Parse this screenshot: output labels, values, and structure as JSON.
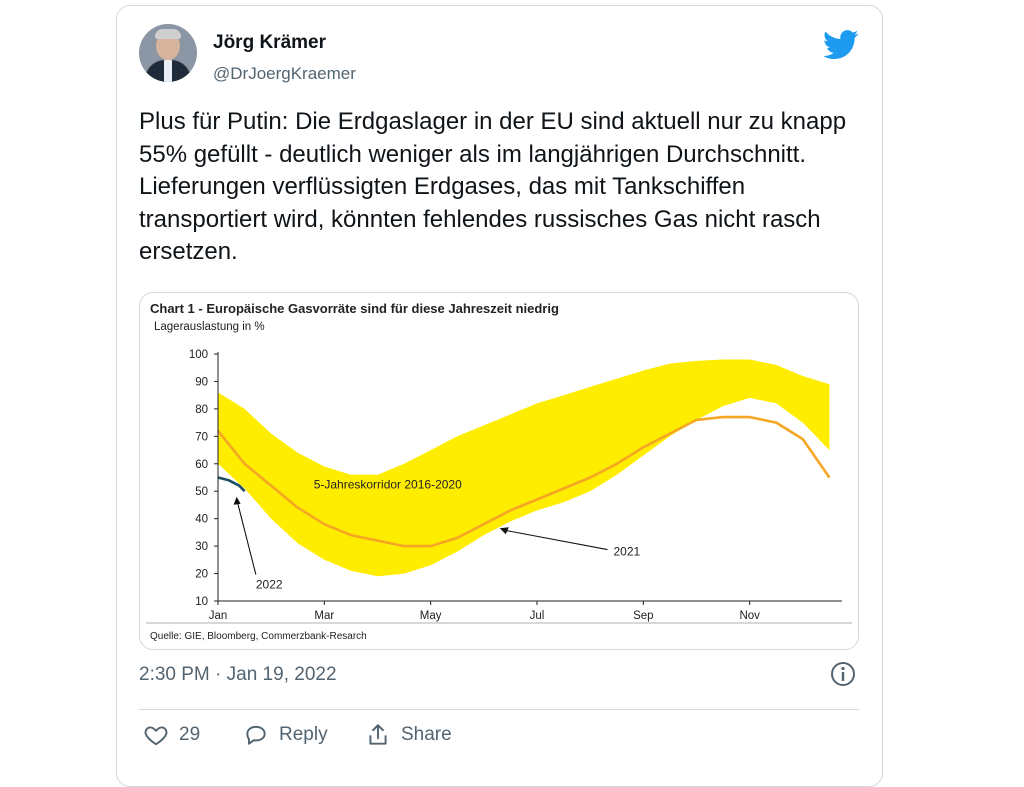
{
  "author": {
    "name": "Jörg Krämer",
    "handle": "@DrJoergKraemer"
  },
  "tweet": {
    "text": "Plus für Putin: Die Erdgaslager in der EU sind aktuell nur zu knapp 55% gefüllt - deutlich weniger als im langjährigen Durchschnitt. Lieferungen verflüssigten Erdgases, das mit Tankschiffen transportiert wird, könnten fehlendes russisches Gas nicht rasch ersetzen."
  },
  "chart_data": {
    "type": "area",
    "title": "Chart 1 - Europäische Gasvorräte sind für diese Jahreszeit niedrig",
    "ylabel": "Lagerauslastung in %",
    "source": "Quelle: GIE, Bloomberg, Commerzbank-Resarch",
    "ylim": [
      10,
      100
    ],
    "yticks": [
      "100",
      "90",
      "80",
      "70",
      "60",
      "50",
      "40",
      "30",
      "20",
      "10"
    ],
    "xlim": [
      0,
      12
    ],
    "xticks": [
      {
        "label": "Jan",
        "x": 0
      },
      {
        "label": "Mar",
        "x": 2
      },
      {
        "label": "May",
        "x": 4
      },
      {
        "label": "Jul",
        "x": 6
      },
      {
        "label": "Sep",
        "x": 8
      },
      {
        "label": "Nov",
        "x": 10
      }
    ],
    "band": {
      "name": "5-Jahreskorridor 2016-2020",
      "x": [
        0,
        0.5,
        1,
        1.5,
        2,
        2.5,
        3,
        3.5,
        4,
        4.5,
        5,
        5.5,
        6,
        6.5,
        7,
        7.5,
        8,
        8.5,
        9,
        9.5,
        10,
        10.5,
        11,
        11.5
      ],
      "upper": [
        86,
        80,
        71,
        64,
        59,
        56,
        56,
        60,
        65,
        70,
        74,
        78,
        82,
        85,
        88,
        91,
        94,
        96.5,
        97.5,
        98,
        98,
        96,
        92,
        89
      ],
      "lower": [
        60,
        51,
        40,
        31,
        25,
        21,
        19,
        20,
        23,
        28,
        34,
        39,
        43,
        46,
        50,
        56,
        63,
        70,
        76,
        81,
        84,
        82,
        75,
        65
      ]
    },
    "series": [
      {
        "name": "2021",
        "color": "#f5a623",
        "x": [
          0,
          0.5,
          1,
          1.5,
          2,
          2.5,
          2.75,
          3,
          3.5,
          4,
          4.5,
          5,
          5.5,
          6,
          6.5,
          7,
          7.5,
          8,
          8.5,
          9,
          9.5,
          10,
          10.5,
          11,
          11.5
        ],
        "values": [
          72,
          60,
          52,
          44,
          38,
          34,
          33,
          32,
          30,
          30,
          33,
          38,
          43,
          47,
          51,
          55,
          60,
          66,
          71,
          76,
          77,
          77,
          75,
          69,
          55
        ]
      },
      {
        "name": "2022",
        "color": "#1f4e5f",
        "x": [
          0,
          0.2,
          0.4,
          0.5
        ],
        "values": [
          55,
          54,
          52,
          50
        ]
      }
    ],
    "annotations": [
      {
        "text": "5-Jahreskorridor 2016-2020",
        "x": 1.8,
        "y": 51
      },
      {
        "text": "2021",
        "x": 7.1,
        "y": 28
      },
      {
        "text": "2022",
        "x": 0.9,
        "y": 16
      }
    ],
    "grid": false
  },
  "timestamp": "2:30 PM · Jan 19, 2022",
  "actions": {
    "likes": "29",
    "reply": "Reply",
    "share": "Share"
  },
  "colors": {
    "twitter_blue": "#1d9bf0",
    "band": "#ffed00",
    "line_2021": "#f5a623",
    "line_2022": "#1f4e5f",
    "text_secondary": "#536471"
  },
  "icons": {
    "logo": "twitter-bird-icon",
    "info": "info-icon",
    "like": "heart-icon",
    "reply": "reply-icon",
    "share": "share-icon"
  }
}
